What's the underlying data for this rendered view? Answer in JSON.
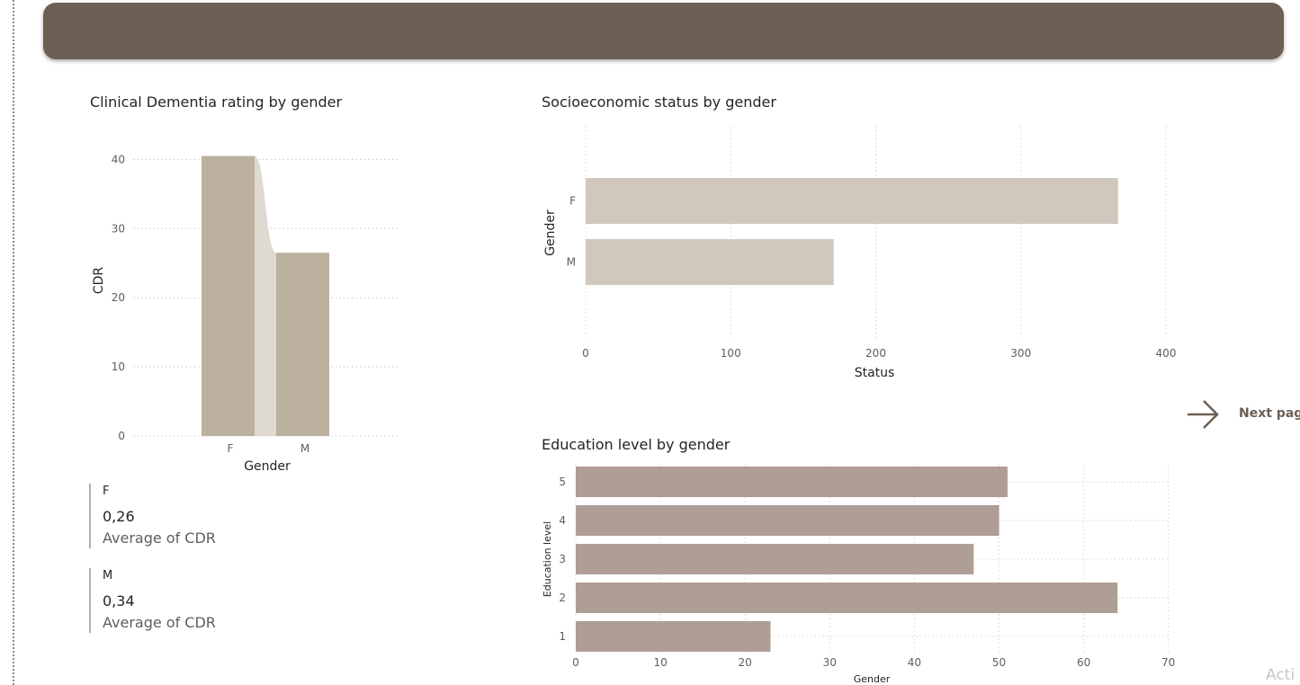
{
  "header": {
    "title": ""
  },
  "charts": {
    "cdr": {
      "title": "Clinical Dementia rating by gender",
      "chart_data": {
        "type": "bar",
        "title": "Clinical Dementia rating by gender",
        "categories": [
          "F",
          "M"
        ],
        "values": [
          40.5,
          26.5
        ],
        "xlabel": "Gender",
        "ylabel": "CDR",
        "yticks": [
          0,
          10,
          20,
          30,
          40
        ],
        "ylim": [
          0,
          40
        ],
        "grid": true,
        "colors": {
          "bar": "#bcb09f",
          "ribbon": "#ded9d1",
          "grid": "#c8c6c4"
        }
      }
    },
    "ses": {
      "title": "Socioeconomic status by gender",
      "chart_data": {
        "type": "bar",
        "orientation": "horizontal",
        "title": "Socioeconomic status by gender",
        "categories": [
          "F",
          "M"
        ],
        "values": [
          367,
          171
        ],
        "xlabel": "Status",
        "ylabel": "Gender",
        "xticks": [
          0,
          100,
          200,
          300,
          400
        ],
        "xlim": [
          0,
          400
        ],
        "grid": true,
        "colors": {
          "bar": "#d1c8bd",
          "grid": "#d6d4d2"
        }
      }
    },
    "edu": {
      "title": "Education level by gender",
      "chart_data": {
        "type": "bar",
        "orientation": "horizontal",
        "title": "Education level by gender",
        "categories": [
          "5",
          "4",
          "3",
          "2",
          "1"
        ],
        "values": [
          51,
          50,
          47,
          64,
          23
        ],
        "xlabel": "Gender",
        "ylabel": "Education level",
        "xticks": [
          0,
          10,
          20,
          30,
          40,
          50,
          60,
          70
        ],
        "xlim": [
          0,
          70
        ],
        "grid": true,
        "colors": {
          "bar": "#af9e95",
          "grid": "#d6d4d2"
        }
      }
    }
  },
  "cards": [
    {
      "label": "F",
      "value": "0,26",
      "caption": "Average of CDR"
    },
    {
      "label": "M",
      "value": "0,34",
      "caption": "Average of CDR"
    }
  ],
  "next_page": {
    "label": "Next page",
    "icon": "arrow-right-icon"
  },
  "watermark": "Acti"
}
